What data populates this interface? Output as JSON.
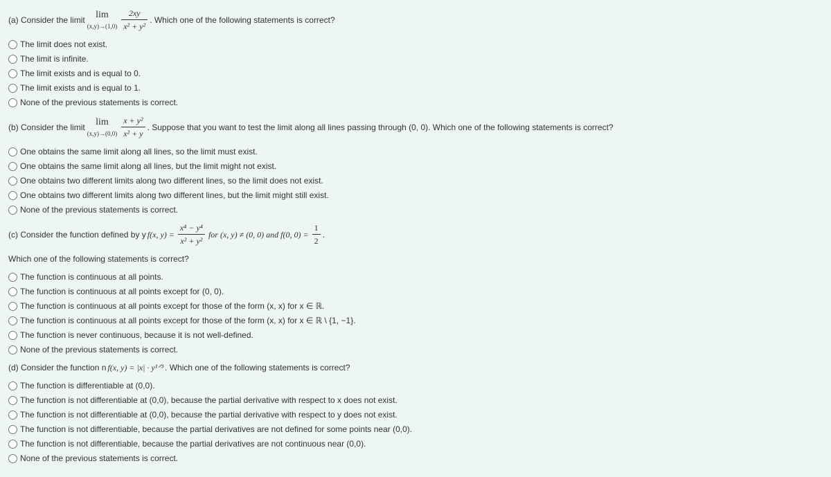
{
  "qa": {
    "prefix": "(a) Consider the limit",
    "lim_top": "lim",
    "lim_bot": "(x,y)→(1,0)",
    "frac_num": "2xy",
    "frac_den": "x² + y²",
    "suffix": ". Which one of the following statements is correct?",
    "options": [
      "The limit does not exist.",
      "The limit is infinite.",
      "The limit exists and is equal to 0.",
      "The limit exists and is equal to 1.",
      "None of the previous statements is correct."
    ]
  },
  "qb": {
    "prefix": "(b) Consider the limit",
    "lim_top": "lim",
    "lim_bot": "(x,y)→(0,0)",
    "frac_num": "x + y²",
    "frac_den": "x² + y",
    "suffix": ". Suppose that you want to test the limit along all lines passing through (0, 0). Which one of the following statements is correct?",
    "options": [
      "One obtains the same limit along all lines, so the limit must exist.",
      "One obtains the same limit along all lines, but the limit might not exist.",
      "One obtains two different limits along two different lines, so the limit does not exist.",
      "One obtains two different limits along two different lines, but the limit might still exist.",
      "None of the previous statements is correct."
    ]
  },
  "qc": {
    "prefix": "(c) Consider the function defined by y ",
    "func": "f(x, y) =",
    "frac_num": "x⁴ − y⁴",
    "frac_den": "x² + y²",
    "mid": " for (x, y) ≠ (0, 0) and f(0, 0) = ",
    "half_num": "1",
    "half_den": "2",
    "end": ".",
    "subprompt": "Which one of the following statements is correct?",
    "options": [
      "The function is continuous at all points.",
      "The function is continuous at all points except for (0, 0).",
      "The function is continuous at all points except for those of the form (x, x) for x ∈ ℝ.",
      "The function is continuous at all points except for those of the form (x, x) for x ∈ ℝ \\ {1, −1}.",
      "The function is never continuous, because it is not well-defined.",
      "None of the previous statements is correct."
    ]
  },
  "qd": {
    "prefix": "(d) Consider the function n ",
    "func": "f(x, y) = |x| · y¹ᐟ³",
    "suffix": ". Which one of the following statements is correct?",
    "options": [
      "The function is differentiable at (0,0).",
      "The function is not differentiable at (0,0), because the partial derivative with respect to x does not exist.",
      "The function is not differentiable at (0,0), because the partial derivative with respect to y does not exist.",
      "The function is not differentiable, because the partial derivatives are not defined for some points near (0,0).",
      "The function is not differentiable, because the partial derivatives are not continuous near (0,0).",
      "None of the previous statements is correct."
    ]
  }
}
